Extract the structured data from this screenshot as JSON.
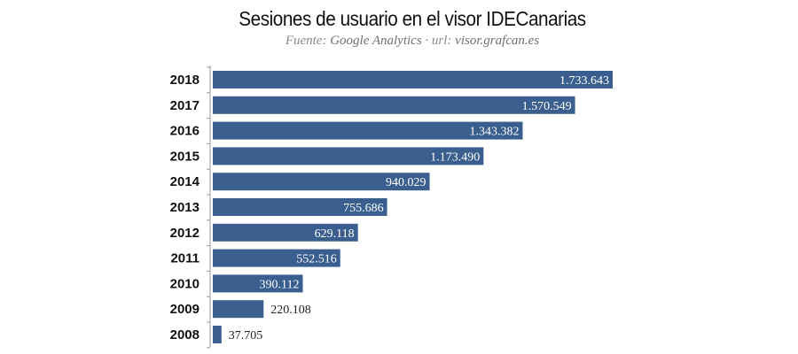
{
  "chart_data": {
    "type": "bar",
    "orientation": "horizontal",
    "title": "Sesiones de usuario en el visor IDECanarias",
    "subtitle": {
      "source_label": "Fuente:",
      "source_value": "Google Analytics",
      "separator": "·",
      "url_label": "url:",
      "url_value": "visor.grafcan.es"
    },
    "categories": [
      "2018",
      "2017",
      "2016",
      "2015",
      "2014",
      "2013",
      "2012",
      "2011",
      "2010",
      "2009",
      "2008"
    ],
    "values": [
      1733643,
      1570549,
      1343382,
      1173490,
      940029,
      755686,
      629118,
      552516,
      390112,
      220108,
      37705
    ],
    "value_labels": [
      "1.733.643",
      "1.570.549",
      "1.343.382",
      "1.173.490",
      "940.029",
      "755.686",
      "629.118",
      "552.516",
      "390.112",
      "220.108",
      "37.705"
    ],
    "xlim": [
      0,
      1733643
    ],
    "grid": false,
    "legend": "none",
    "colors": {
      "bar": "#3a5f8f",
      "label_inside": "#ffffff",
      "label_outside": "#222222"
    }
  }
}
